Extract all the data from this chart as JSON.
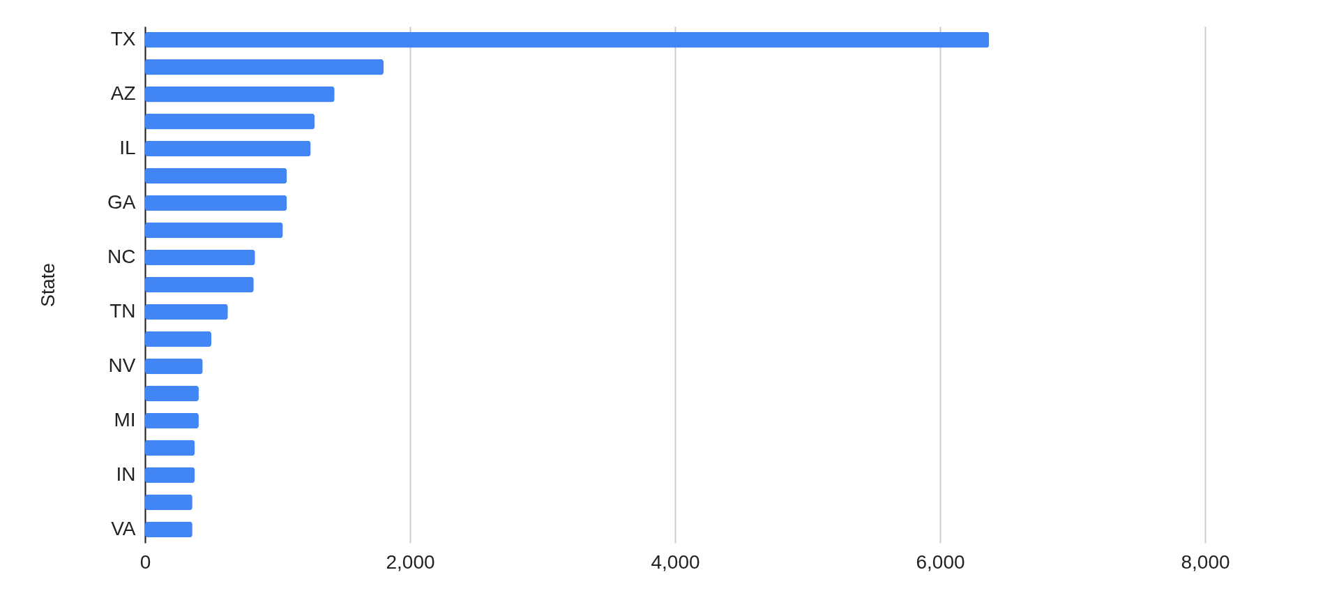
{
  "chart_data": {
    "type": "bar",
    "orientation": "horizontal",
    "ylabel": "State",
    "categories": [
      "TX",
      null,
      "AZ",
      null,
      "IL",
      null,
      "GA",
      null,
      "NC",
      null,
      "TN",
      null,
      "NV",
      null,
      "MI",
      null,
      "IN",
      null,
      "VA"
    ],
    "values": [
      6370,
      1800,
      1430,
      1280,
      1250,
      1070,
      1070,
      1040,
      830,
      820,
      625,
      500,
      435,
      405,
      405,
      375,
      375,
      357,
      357
    ],
    "color": "#4285f4",
    "xlim": [
      0,
      8000
    ],
    "xticks": [
      0,
      {
        "value": 2000,
        "label": "2,000"
      },
      {
        "value": 4000,
        "label": "4,000"
      },
      {
        "value": 6000,
        "label": "6,000"
      },
      {
        "value": 8000,
        "label": "8,000"
      }
    ],
    "grid": "x"
  }
}
